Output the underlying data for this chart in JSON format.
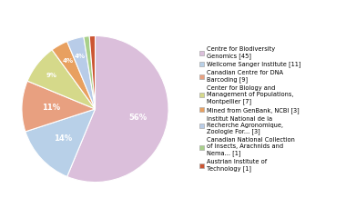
{
  "labels": [
    "Centre for Biodiversity\nGenomics [45]",
    "Wellcome Sanger Institute [11]",
    "Canadian Centre for DNA\nBarcoding [9]",
    "Center for Biology and\nManagement of Populations,\nMontpellier [7]",
    "Mined from GenBank, NCBI [3]",
    "Institut National de la\nRecherche Agronomique,\nZoologie For... [3]",
    "Canadian National Collection\nof Insects, Arachnids and\nNema... [1]",
    "Austrian Institute of\nTechnology [1]"
  ],
  "values": [
    45,
    11,
    9,
    7,
    3,
    3,
    1,
    1
  ],
  "colors": [
    "#dbbfdb",
    "#b8d0e8",
    "#e8a080",
    "#d5d98a",
    "#e8a060",
    "#b8cce8",
    "#a8d08a",
    "#cc5533"
  ],
  "startangle": 90,
  "background_color": "#ffffff",
  "figsize": [
    3.8,
    2.4
  ],
  "dpi": 100
}
